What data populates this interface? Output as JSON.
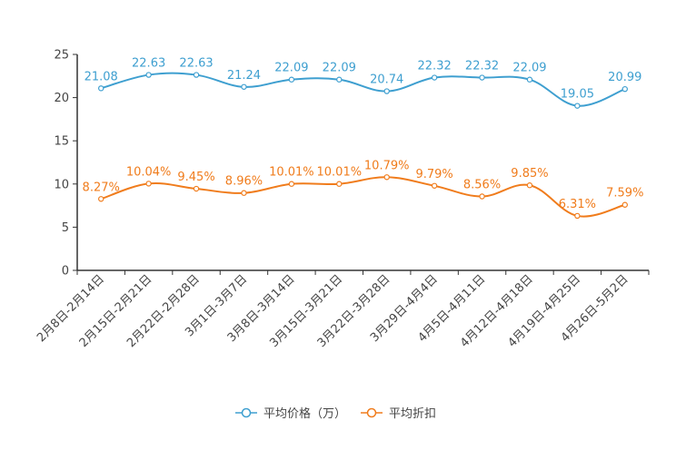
{
  "chart_data": {
    "type": "line",
    "title": "",
    "xlabel": "",
    "ylabel": "",
    "ylim": [
      0,
      25
    ],
    "yticks": [
      0,
      5,
      10,
      15,
      20,
      25
    ],
    "grid": false,
    "legend_position": "bottom-center",
    "categories": [
      "2月8日-2月14日",
      "2月15日-2月21日",
      "2月22日-2月28日",
      "3月1日-3月7日",
      "3月8日-3月14日",
      "3月15日-3月21日",
      "3月22日-3月28日",
      "3月29日-4月4日",
      "4月5日-4月11日",
      "4月12日-4月18日",
      "4月19日-4月25日",
      "4月26日-5月2日"
    ],
    "series": [
      {
        "name": "平均价格（万）",
        "color": "#3e9fd0",
        "values": [
          21.08,
          22.63,
          22.63,
          21.24,
          22.09,
          22.09,
          20.74,
          22.32,
          22.32,
          22.09,
          19.05,
          20.99
        ],
        "labels": [
          "21.08",
          "22.63",
          "22.63",
          "21.24",
          "22.09",
          "22.09",
          "20.74",
          "22.32",
          "22.32",
          "22.09",
          "19.05",
          "20.99"
        ]
      },
      {
        "name": "平均折扣",
        "color": "#f07c1c",
        "values": [
          8.27,
          10.04,
          9.45,
          8.96,
          10.01,
          10.01,
          10.79,
          9.79,
          8.56,
          9.85,
          6.31,
          7.59
        ],
        "labels": [
          "8.27%",
          "10.04%",
          "9.45%",
          "8.96%",
          "10.01%",
          "10.01%",
          "10.79%",
          "9.79%",
          "8.56%",
          "9.85%",
          "6.31%",
          "7.59%"
        ]
      }
    ]
  }
}
